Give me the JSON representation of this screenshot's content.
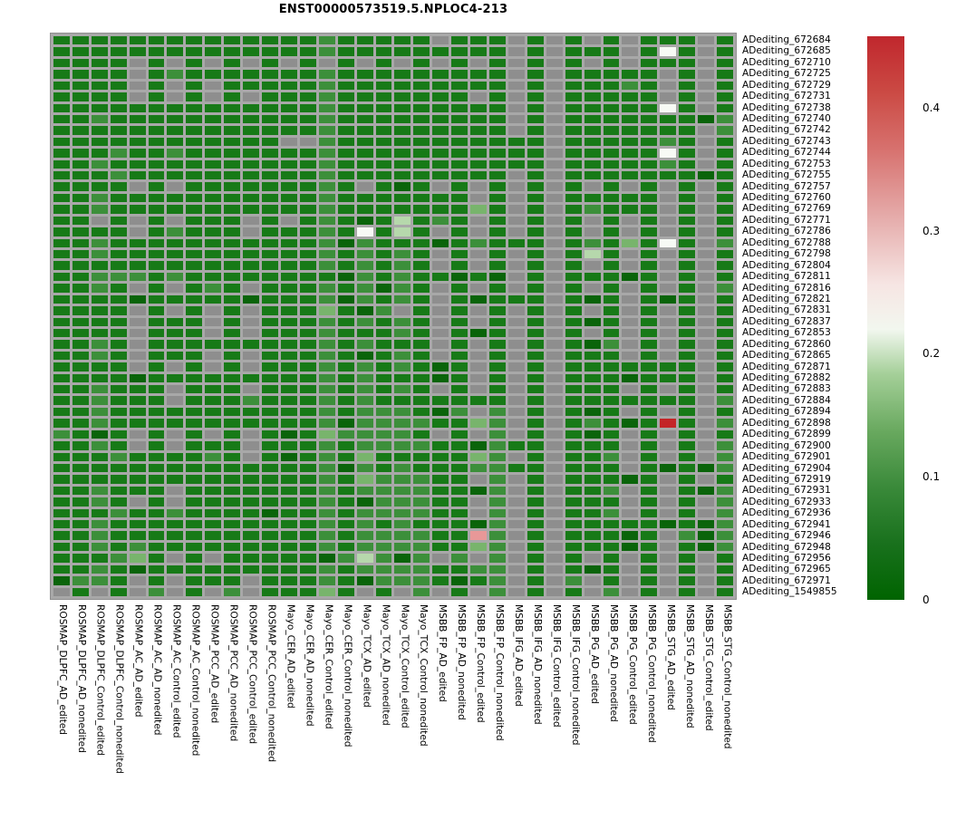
{
  "title": "ENST00000573519.5.NPLOC4-213",
  "chart_data": {
    "type": "heatmap",
    "title": "ENST00000573519.5.NPLOC4-213",
    "rows": [
      "ADediting_672684",
      "ADediting_672685",
      "ADediting_672710",
      "ADediting_672725",
      "ADediting_672729",
      "ADediting_672731",
      "ADediting_672738",
      "ADediting_672740",
      "ADediting_672742",
      "ADediting_672743",
      "ADediting_672744",
      "ADediting_672753",
      "ADediting_672755",
      "ADediting_672757",
      "ADediting_672760",
      "ADediting_672769",
      "ADediting_672771",
      "ADediting_672786",
      "ADediting_672788",
      "ADediting_672798",
      "ADediting_672804",
      "ADediting_672811",
      "ADediting_672816",
      "ADediting_672821",
      "ADediting_672831",
      "ADediting_672837",
      "ADediting_672853",
      "ADediting_672860",
      "ADediting_672865",
      "ADediting_672871",
      "ADediting_672882",
      "ADediting_672883",
      "ADediting_672884",
      "ADediting_672894",
      "ADediting_672898",
      "ADediting_672899",
      "ADediting_672900",
      "ADediting_672901",
      "ADediting_672904",
      "ADediting_672919",
      "ADediting_672931",
      "ADediting_672933",
      "ADediting_672936",
      "ADediting_672941",
      "ADediting_672946",
      "ADediting_672948",
      "ADediting_672956",
      "ADediting_672965",
      "ADediting_672971",
      "ADediting_1549855"
    ],
    "columns": [
      "ROSMAP_DLPFC_AD_edited",
      "ROSMAP_DLPFC_AD_nonedited",
      "ROSMAP_DLPFC_Control_edited",
      "ROSMAP_DLPFC_Control_nonedited",
      "ROSMAP_AC_AD_edited",
      "ROSMAP_AC_AD_nonedited",
      "ROSMAP_AC_Control_edited",
      "ROSMAP_AC_Control_nonedited",
      "ROSMAP_PCC_AD_edited",
      "ROSMAP_PCC_AD_nonedited",
      "ROSMAP_PCC_Control_edited",
      "ROSMAP_PCC_Control_nonedited",
      "Mayo_CER_AD_edited",
      "Mayo_CER_AD_nonedited",
      "Mayo_CER_Control_edited",
      "Mayo_CER_Control_nonedited",
      "Mayo_TCX_AD_edited",
      "Mayo_TCX_AD_nonedited",
      "Mayo_TCX_Control_edited",
      "Mayo_TCX_Control_nonedited",
      "MSBB_FP_AD_edited",
      "MSBB_FP_AD_nonedited",
      "MSBB_FP_Control_edited",
      "MSBB_FP_Control_nonedited",
      "MSBB_IFG_AD_edited",
      "MSBB_IFG_AD_nonedited",
      "MSBB_IFG_Control_edited",
      "MSBB_IFG_Control_nonedited",
      "MSBB_PG_AD_edited",
      "MSBB_PG_AD_nonedited",
      "MSBB_PG_Control_edited",
      "MSBB_PG_Control_nonedited",
      "MSBB_STG_AD_edited",
      "MSBB_STG_AD_nonedited",
      "MSBB_STG_Control_edited",
      "MSBB_STG_Control_nonedited"
    ],
    "cell_codes_by_row": [
      "GGGGGGGGGGGGGGgGGGGGNGGGNGNGNGNGGGNG",
      "GGGGGGGGGGGGGGgGGGGGGGGGNGNGGGNGWGNG",
      "GGGGNGNGNGNGNGNGNGNGNGNGNGNGNGNGGGNG",
      "GGGGNGgGGGGGGGgGGGGGGGGGNGNGGGGGNGNG",
      "GGGGNGNGNGGGGGgGGGGGGGGGNGNGGGgGNGNG",
      "GGGGNGNGNGNGGGgGGGGGGGNGNGNGGGGGNGNG",
      "GGGGGGGGGGGGGGgGGGGGGGGGNGNGGGGGWGNG",
      "GGgGGGGGGGGGGGgGGGGGGGGGNGNGGGGGGGDg",
      "GGGGGGGGGGGGGGgGGGGGGGGGNGNGGGGGGGNg",
      "GGGGGGGGGGGGNNgGGGGGGGGGGGNGGGGGgGNG",
      "GGGgGGgGGGGGGGgGGGGGGGGGGGNGGGGGWGNG",
      "GGgGGGGGGGGGGGgGGGGGGGGGGGNGGGGGgGNG",
      "GGGgGGGGGGGGGGgGGGGGGGGGNGNGGGGGGGDG",
      "GGGGNGNGGGGGGGgGNGDGNGNGNGNGNGNGNGNG",
      "GGgGGGGGGGGGGGgGGGGGGGNGNGNGGGGGNGNG",
      "GGgGGGGGGGGGGGgGGGGGGGLGNGNGgGGGNGNG",
      "GGNGNGNGGGNGNGgGDGVGgGNGNGNGNGNGNGNG",
      "GGGGNGgGGGNGGGgGWGVGNGNGNGNGNGNGNGNG",
      "GGgGGGGGGGGGGGgDgGGGDGgGGGNGgGLGWGNg",
      "GGgGGGGGGGGGGGgGgGgGNGNGNGNGVGNGNGNG",
      "GGGGGGGGGGGGGGgGgGgGNGNGNGNGNGNGNGNG",
      "GGgggGgGGGGGGGGDgGgGGDGDNGNGGGDGNGNG",
      "GGgGNGNGgGNGGGgGgDgGNGNGNGNGNGNGNGNg",
      "GGGGDGGGGGDGGGgDgGgGNGDGGGNGDGNGDGNG",
      "GGGGNGNGNGNGGGLGDgNGNGNGNGNGNGNGNGNG",
      "GGGGNGGGNGNGGGgGgGgGNGNGNGNGDGNGNGNG",
      "GGGGNGGGNGNGGGgGGGgGNGDGNGNGNGNGNGNG",
      "GGgGNGGGGGGGGGgGgGGGNGNGNGNGDgNGNGNG",
      "GGgGNGGGNGNGGGgGDGgGNGNGNGNGGGNGNGNG",
      "GGGGNGNGNGNGGGgGgGgGDGNGNGNGGGGGGGNG",
      "GGGGDGGGGGGGGGgGgGGGDGNGNGNGGGDGGGNG",
      "GGgGGGNGGGNGGGgGgGgGNGNGNGNGGGNGNGNG",
      "GGgGGGNGGGgGGGgGgGGGGGGGNGNGGGGGGGNg",
      "GGgGGGGGGGGGGGgGgggGDgNgNGNGDGNGNGNG",
      "GGgGGGGGGGGGGGgDggggGGLgNGNGgGDGRGNg",
      "gGDGNGNGNGNGDGLggggGNGNgNGNGDGNGNGNG",
      "GGgGNGNGGGNGGGgGggggGGDgGGNGGGNGNGNg",
      "GGGgGGGGgGNGDGgGLGGGGGLgNGNGGgNGNGNg",
      "GGGGGGGGGGGGGGgDgGgGGGggGGNGGGNGDGDg",
      "GGGGGGGGGGGGGGgGLgggGGNgNGNGGGDGNGNG",
      "GGgGGGNGGGGGGGgGggggGGDgNGNGGgNGNGDg",
      "GGgGNGNGGGGGGGgGDgggGGNgNGNGGGNGNGNg",
      "GGGgGGgGGGGDGGgGggggGGNgNGNGGgNGNGNg",
      "GGgGGGGGGGGGGGgGgGgGGGDgNGNGGGGGDGDg",
      "GGgGGGGGGGGGGGgGggggGGPgNGNGGGDGNgDg",
      "GGgGgGGGGGGGGGgGggggGGLgNGNGGGDGNGDg",
      "GGGgLGNGNGGGGGDgVgDgNgNgNGNGNGNGNGNG",
      "GGgGDGGGGGGGGGgGggggGGggNGNGDGNGNGNG",
      "DggGNGNGGGNGGGgGDgggGDGgNGNgNGNGNGNG",
      "NGNGNgNGNgNGGGLGNGNgNGNgNGNGNgNGNGNG"
    ],
    "palette": {
      "D": {
        "color": "#0a640a",
        "value": 0.005
      },
      "G": {
        "color": "#177a17",
        "value": 0.03
      },
      "g": {
        "color": "#3c8f3a",
        "value": 0.065
      },
      "L": {
        "color": "#78b46c",
        "value": 0.125
      },
      "V": {
        "color": "#b6d8ac",
        "value": 0.175
      },
      "W": {
        "color": "#f7faf5",
        "value": 0.22
      },
      "P": {
        "color": "#e89898",
        "value": 0.3
      },
      "R": {
        "color": "#c42427",
        "value": 0.44
      },
      "N": {
        "color": "#8e8e8e",
        "value": null
      }
    },
    "na_color": "#8e8e8e",
    "legend_position": "right",
    "grid_gap_color": "#a8a8a8",
    "colorbar": {
      "min": 0,
      "max": 0.458,
      "ticks": [
        {
          "label": "0.4",
          "value": 0.4
        },
        {
          "label": "0.3",
          "value": 0.3
        },
        {
          "label": "0.2",
          "value": 0.2
        },
        {
          "label": "0.1",
          "value": 0.1
        },
        {
          "label": "0",
          "value": 0.0
        }
      ],
      "gradient": [
        "#006400",
        "#ffffff",
        "#c0272d"
      ],
      "white_point_value": 0.22
    }
  }
}
